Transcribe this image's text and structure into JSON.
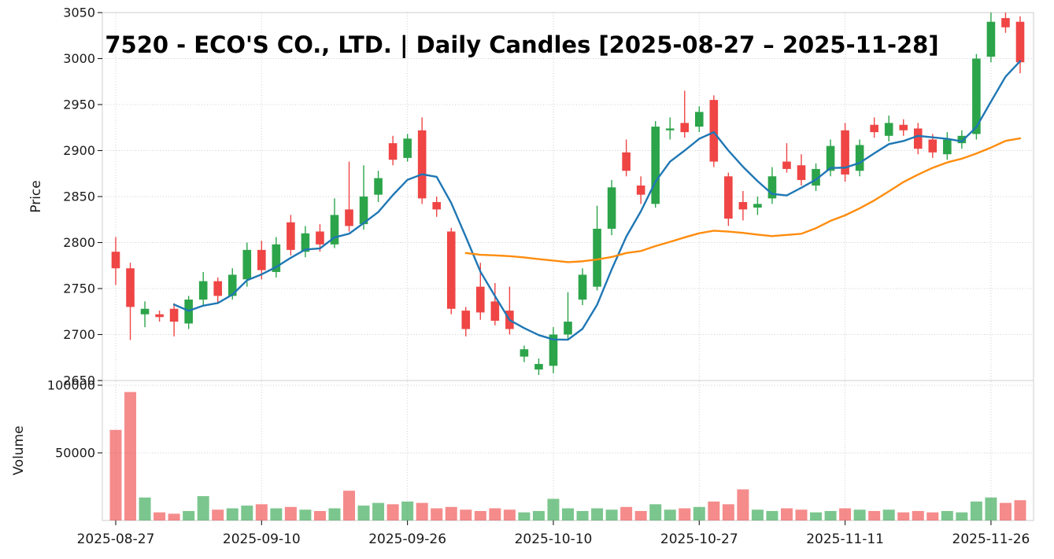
{
  "title": "7520 - ECO'S CO., LTD. | Daily Candles [2025-08-27 – 2025-11-28]",
  "axes": {
    "price_label": "Price",
    "volume_label": "Volume"
  },
  "chart_data": {
    "type": "candlestick",
    "panels": [
      "price",
      "volume"
    ],
    "colors": {
      "up": "#2ca44a",
      "down": "#ef4545",
      "ma5": "#1f77b4",
      "ma25": "#ff8c0e",
      "grid": "#cccccc",
      "spine": "#cccccc",
      "text": "#1a1a1a",
      "background": "#ffffff"
    },
    "price_axis": {
      "min": 2650,
      "max": 3050,
      "ticks": [
        3050,
        3000,
        2950,
        2900,
        2850,
        2800,
        2750,
        2700,
        2650
      ]
    },
    "volume_axis": {
      "max": 103500,
      "ticks": [
        100000,
        50000
      ]
    },
    "x_ticks": [
      {
        "index": 0,
        "label": "2025-08-27"
      },
      {
        "index": 10,
        "label": "2025-09-10"
      },
      {
        "index": 20,
        "label": "2025-09-26"
      },
      {
        "index": 30,
        "label": "2025-10-10"
      },
      {
        "index": 40,
        "label": "2025-10-27"
      },
      {
        "index": 50,
        "label": "2025-11-11"
      },
      {
        "index": 60,
        "label": "2025-11-26"
      }
    ],
    "overlays": [
      {
        "name": "MA5",
        "type": "sma",
        "window": 5,
        "color": "#1f77b4"
      },
      {
        "name": "MA25",
        "type": "sma",
        "window": 25,
        "color": "#ff8c0e"
      }
    ],
    "candles_format": [
      "date",
      "open",
      "high",
      "low",
      "close",
      "volume"
    ],
    "candles": [
      [
        "2025-08-27",
        2790,
        2806,
        2754,
        2772,
        67000
      ],
      [
        "2025-08-28",
        2772,
        2778,
        2694,
        2730,
        95000
      ],
      [
        "2025-08-29",
        2722,
        2736,
        2708,
        2728,
        17000
      ],
      [
        "2025-09-01",
        2722,
        2726,
        2714,
        2719,
        6000
      ],
      [
        "2025-09-02",
        2728,
        2734,
        2698,
        2714,
        5000
      ],
      [
        "2025-09-03",
        2712,
        2742,
        2706,
        2738,
        7000
      ],
      [
        "2025-09-04",
        2738,
        2768,
        2732,
        2758,
        18000
      ],
      [
        "2025-09-05",
        2758,
        2762,
        2734,
        2742,
        8000
      ],
      [
        "2025-09-08",
        2742,
        2772,
        2738,
        2765,
        9000
      ],
      [
        "2025-09-09",
        2760,
        2800,
        2752,
        2792,
        11000
      ],
      [
        "2025-09-10",
        2792,
        2802,
        2760,
        2770,
        12000
      ],
      [
        "2025-09-11",
        2768,
        2806,
        2762,
        2798,
        9000
      ],
      [
        "2025-09-12",
        2822,
        2830,
        2786,
        2792,
        10000
      ],
      [
        "2025-09-16",
        2790,
        2818,
        2784,
        2810,
        8000
      ],
      [
        "2025-09-17",
        2812,
        2820,
        2790,
        2798,
        7000
      ],
      [
        "2025-09-18",
        2798,
        2848,
        2794,
        2830,
        9000
      ],
      [
        "2025-09-19",
        2836,
        2888,
        2812,
        2818,
        22000
      ],
      [
        "2025-09-22",
        2820,
        2884,
        2814,
        2850,
        11000
      ],
      [
        "2025-09-24",
        2852,
        2878,
        2844,
        2870,
        13000
      ],
      [
        "2025-09-25",
        2908,
        2916,
        2884,
        2890,
        12000
      ],
      [
        "2025-09-26",
        2892,
        2918,
        2888,
        2913,
        14000
      ],
      [
        "2025-09-29",
        2922,
        2936,
        2842,
        2848,
        13000
      ],
      [
        "2025-09-30",
        2844,
        2850,
        2828,
        2836,
        9000
      ],
      [
        "2025-10-01",
        2812,
        2816,
        2722,
        2728,
        10000
      ],
      [
        "2025-10-02",
        2726,
        2730,
        2698,
        2706,
        8000
      ],
      [
        "2025-10-03",
        2752,
        2778,
        2716,
        2724,
        7000
      ],
      [
        "2025-10-06",
        2736,
        2756,
        2710,
        2715,
        9000
      ],
      [
        "2025-10-07",
        2726,
        2752,
        2700,
        2706,
        8000
      ],
      [
        "2025-10-08",
        2676,
        2688,
        2670,
        2684,
        6000
      ],
      [
        "2025-10-09",
        2662,
        2674,
        2656,
        2668,
        7000
      ],
      [
        "2025-10-10",
        2666,
        2708,
        2658,
        2700,
        16000
      ],
      [
        "2025-10-14",
        2700,
        2746,
        2694,
        2714,
        9000
      ],
      [
        "2025-10-15",
        2738,
        2772,
        2732,
        2765,
        7000
      ],
      [
        "2025-10-16",
        2752,
        2840,
        2748,
        2815,
        9000
      ],
      [
        "2025-10-17",
        2815,
        2868,
        2808,
        2860,
        8000
      ],
      [
        "2025-10-20",
        2898,
        2912,
        2872,
        2878,
        10000
      ],
      [
        "2025-10-21",
        2862,
        2872,
        2842,
        2852,
        7000
      ],
      [
        "2025-10-22",
        2842,
        2932,
        2838,
        2926,
        12000
      ],
      [
        "2025-10-23",
        2922,
        2936,
        2912,
        2924,
        8000
      ],
      [
        "2025-10-24",
        2930,
        2965,
        2914,
        2920,
        9000
      ],
      [
        "2025-10-27",
        2926,
        2948,
        2920,
        2942,
        10000
      ],
      [
        "2025-10-28",
        2955,
        2960,
        2882,
        2888,
        14000
      ],
      [
        "2025-10-29",
        2872,
        2876,
        2818,
        2826,
        12000
      ],
      [
        "2025-10-30",
        2844,
        2856,
        2824,
        2836,
        23000
      ],
      [
        "2025-10-31",
        2838,
        2850,
        2830,
        2842,
        8000
      ],
      [
        "2025-11-04",
        2848,
        2882,
        2842,
        2872,
        7000
      ],
      [
        "2025-11-05",
        2888,
        2908,
        2876,
        2880,
        9000
      ],
      [
        "2025-11-06",
        2884,
        2896,
        2862,
        2868,
        8000
      ],
      [
        "2025-11-07",
        2862,
        2886,
        2856,
        2880,
        6000
      ],
      [
        "2025-11-10",
        2878,
        2912,
        2872,
        2905,
        7000
      ],
      [
        "2025-11-11",
        2922,
        2930,
        2866,
        2874,
        9000
      ],
      [
        "2025-11-12",
        2878,
        2912,
        2872,
        2906,
        8000
      ],
      [
        "2025-11-13",
        2928,
        2936,
        2914,
        2920,
        7000
      ],
      [
        "2025-11-14",
        2916,
        2938,
        2910,
        2930,
        8000
      ],
      [
        "2025-11-17",
        2928,
        2934,
        2916,
        2922,
        6000
      ],
      [
        "2025-11-18",
        2924,
        2930,
        2896,
        2902,
        7000
      ],
      [
        "2025-11-19",
        2912,
        2918,
        2892,
        2898,
        6000
      ],
      [
        "2025-11-20",
        2896,
        2920,
        2890,
        2912,
        7000
      ],
      [
        "2025-11-21",
        2908,
        2922,
        2902,
        2916,
        6000
      ],
      [
        "2025-11-25",
        2918,
        3005,
        2912,
        3000,
        14000
      ],
      [
        "2025-11-26",
        3002,
        3050,
        2996,
        3040,
        17000
      ],
      [
        "2025-11-27",
        3044,
        3050,
        3028,
        3034,
        13000
      ],
      [
        "2025-11-28",
        3040,
        3046,
        2984,
        2996,
        15000
      ]
    ]
  }
}
